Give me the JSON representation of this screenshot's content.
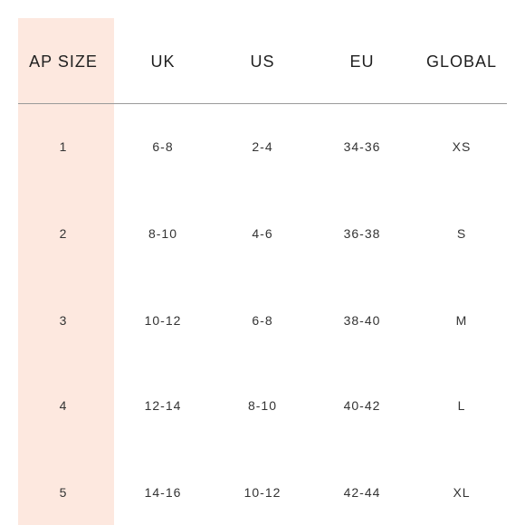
{
  "size_chart": {
    "highlight_color": "#fde8df",
    "headers": [
      "AP SIZE",
      "UK",
      "US",
      "EU",
      "GLOBAL"
    ],
    "rows": [
      [
        "1",
        "6-8",
        "2-4",
        "34-36",
        "XS"
      ],
      [
        "2",
        "8-10",
        "4-6",
        "36-38",
        "S"
      ],
      [
        "3",
        "10-12",
        "6-8",
        "38-40",
        "M"
      ],
      [
        "4",
        "12-14",
        "8-10",
        "40-42",
        "L"
      ],
      [
        "5",
        "14-16",
        "10-12",
        "42-44",
        "XL"
      ]
    ]
  }
}
